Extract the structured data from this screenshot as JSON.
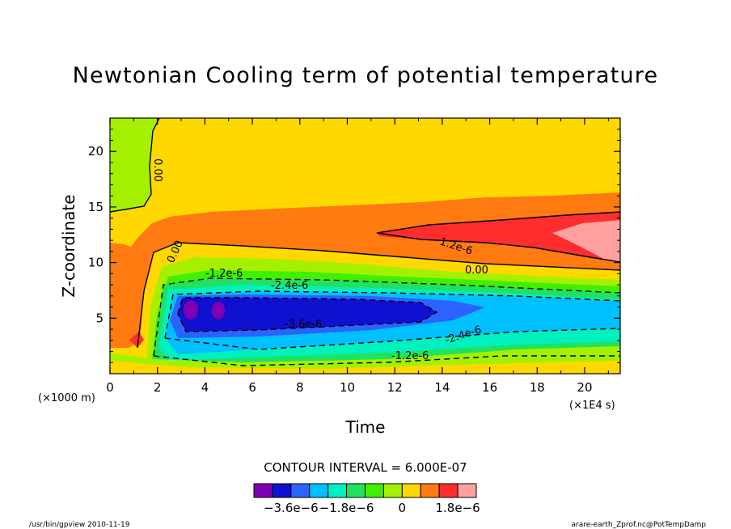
{
  "chart_data": {
    "type": "heatmap",
    "title": "Newtonian Cooling term of potential temperature",
    "xlabel": "Time",
    "ylabel": "Z-coordinate",
    "x_unit": "(×1E4 s)",
    "y_unit": "(×1000 m)",
    "xlim": [
      0,
      21.5
    ],
    "ylim": [
      0,
      23
    ],
    "xticks": [
      "0",
      "2",
      "4",
      "6",
      "8",
      "10",
      "12",
      "14",
      "16",
      "18",
      "20"
    ],
    "yticks": [
      "5",
      "10",
      "15",
      "20"
    ],
    "contour_interval": "CONTOUR INTERVAL = 6.000E-07",
    "contour_labels": [
      "0.00",
      "0.00",
      "-1.2e-6",
      "-2.4e-6",
      "-3.6e-6",
      "-2.4e-6",
      "-1.2e-6",
      "1.2e-6",
      "0.00"
    ],
    "colorbar": {
      "colors": [
        "#7f00b4",
        "#1010d0",
        "#2a63ff",
        "#00c0ff",
        "#00f0c0",
        "#21e25f",
        "#3ff000",
        "#a5f000",
        "#ffd800",
        "#ff7a10",
        "#ff2d2d",
        "#ffa0a0"
      ],
      "labels": [
        "−3.6e−6",
        "−1.8e−6",
        "0",
        "1.8e−6"
      ]
    }
  },
  "footer": {
    "left": "/usr/bin/gpview  2010-11-19",
    "right": "arare-earth_Zprof.nc@PotTempDamp"
  }
}
